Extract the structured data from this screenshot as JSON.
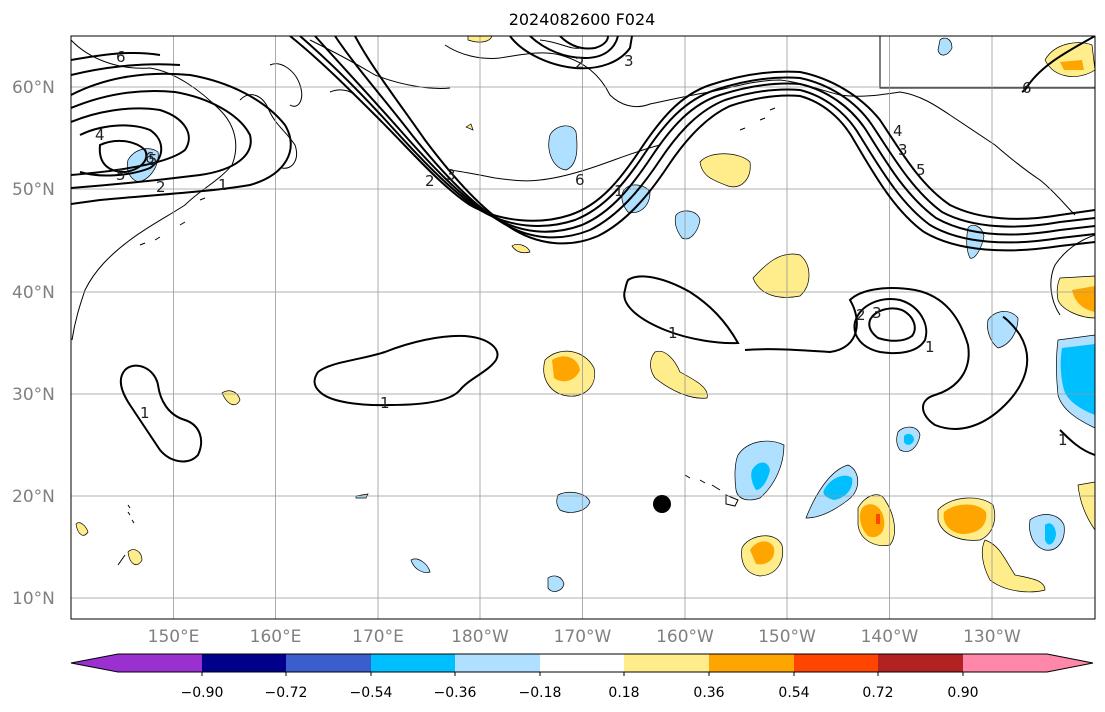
{
  "title": "2024082600 F024",
  "map": {
    "lon_labels": [
      "150°E",
      "160°E",
      "170°E",
      "180°W",
      "170°W",
      "160°W",
      "150°W",
      "140°W",
      "130°W"
    ],
    "lat_labels": [
      "60°N",
      "50°N",
      "40°N",
      "30°N",
      "20°N",
      "10°N"
    ],
    "contour_labels": [
      "6",
      "5",
      "4",
      "6",
      "5",
      "2",
      "1",
      "2",
      "3",
      "6",
      "1",
      "2",
      "3",
      "1",
      "1",
      "1",
      "1",
      "1",
      "4",
      "3",
      "5",
      "1",
      "6"
    ],
    "marker": "black dot"
  },
  "colorbar": {
    "tick_labels": [
      "−0.90",
      "−0.72",
      "−0.54",
      "−0.36",
      "−0.18",
      "0.18",
      "0.36",
      "0.54",
      "0.72",
      "0.90"
    ],
    "colors": [
      "#9b30d0",
      "#00008b",
      "#3a5fcd",
      "#00bfff",
      "#b0e0ff",
      "#ffffff",
      "#ffec8b",
      "#ffa500",
      "#ff4500",
      "#b22222",
      "#ff88aa"
    ]
  }
}
